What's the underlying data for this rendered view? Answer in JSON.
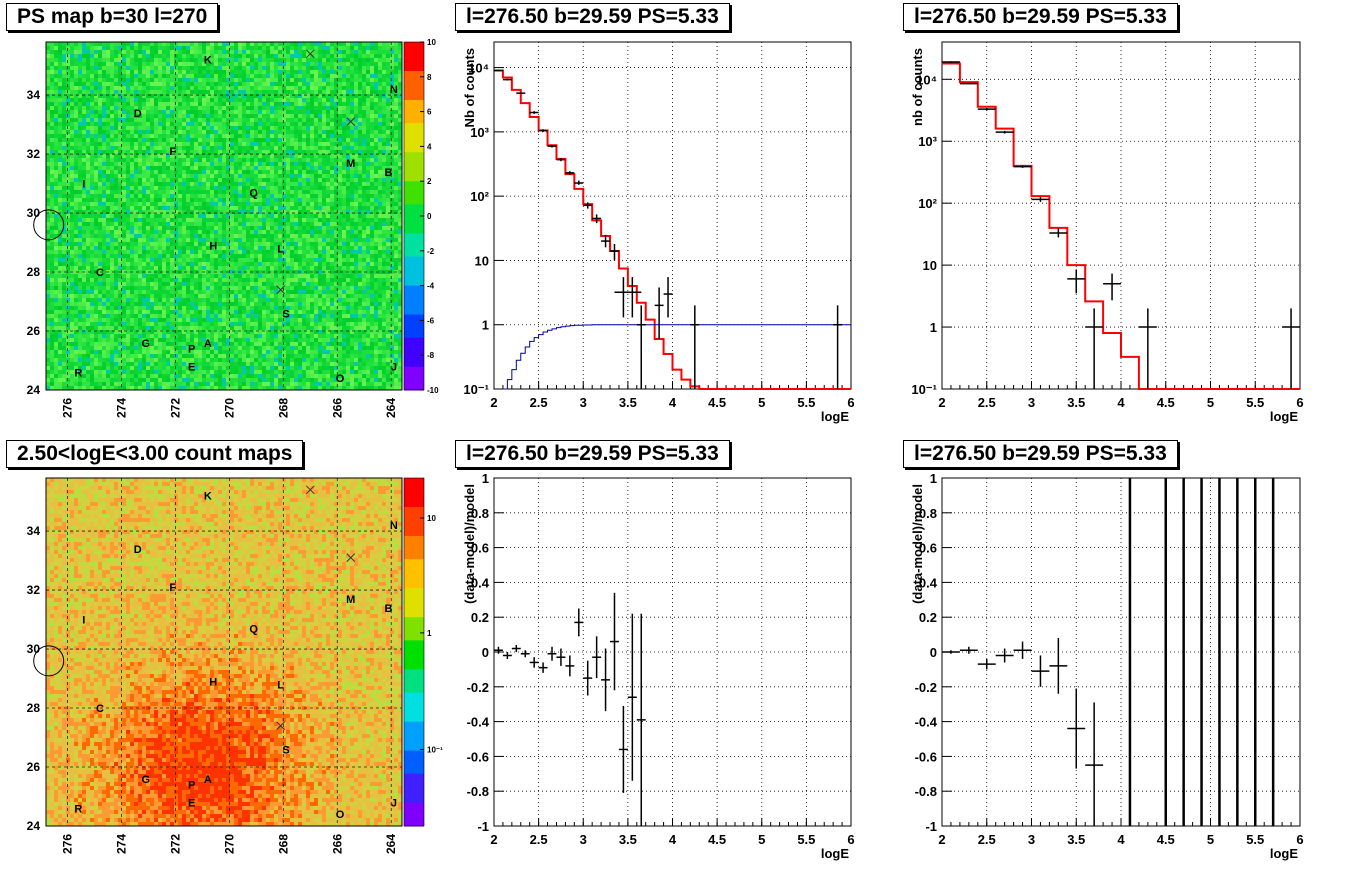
{
  "titles": {
    "map_top": "PS map b=30 l=270",
    "map_bottom": "2.50<logE<3.00 count maps",
    "spec_left": "l=276.50 b=29.59 PS=5.33",
    "spec_right": "l=276.50 b=29.59 PS=5.33",
    "res_left": "l=276.50 b=29.59 PS=5.33",
    "res_right": "l=276.50 b=29.59 PS=5.33"
  },
  "chart_data": [
    {
      "id": "ps-map",
      "type": "heatmap",
      "title": "PS map b=30 l=270",
      "xlim": [
        276.8,
        263.6
      ],
      "ylim": [
        24,
        35.8
      ],
      "xticks": [
        276,
        274,
        272,
        270,
        268,
        266,
        264
      ],
      "yticks": [
        24,
        26,
        28,
        30,
        32,
        34
      ],
      "colorbar": {
        "scale": "linear",
        "range": [
          -10,
          10
        ],
        "ticks": [
          "10",
          "8",
          "6",
          "4",
          "2",
          "0",
          "-2",
          "-4",
          "-6",
          "-8",
          "-10"
        ]
      },
      "grid": true,
      "labels": [
        {
          "text": "K",
          "l": 270.8,
          "b": 35.2
        },
        {
          "text": "N",
          "l": 263.9,
          "b": 34.2
        },
        {
          "text": "D",
          "l": 273.4,
          "b": 33.4
        },
        {
          "text": "F",
          "l": 272.1,
          "b": 32.1
        },
        {
          "text": "M",
          "l": 265.5,
          "b": 31.7
        },
        {
          "text": "B",
          "l": 264.1,
          "b": 31.4
        },
        {
          "text": "I",
          "l": 275.4,
          "b": 31.0
        },
        {
          "text": "Q",
          "l": 269.1,
          "b": 30.7
        },
        {
          "text": "H",
          "l": 270.6,
          "b": 28.9
        },
        {
          "text": "L",
          "l": 268.1,
          "b": 28.8
        },
        {
          "text": "C",
          "l": 274.8,
          "b": 28.0
        },
        {
          "text": "S",
          "l": 267.9,
          "b": 26.6
        },
        {
          "text": "G",
          "l": 273.1,
          "b": 25.6
        },
        {
          "text": "P",
          "l": 271.4,
          "b": 25.4
        },
        {
          "text": "A",
          "l": 270.8,
          "b": 25.6
        },
        {
          "text": "E",
          "l": 271.4,
          "b": 24.8
        },
        {
          "text": "R",
          "l": 275.6,
          "b": 24.6
        },
        {
          "text": "O",
          "l": 265.9,
          "b": 24.4
        },
        {
          "text": "J",
          "l": 263.9,
          "b": 24.8
        }
      ],
      "crosses": [
        {
          "l": 267.0,
          "b": 35.4
        },
        {
          "l": 265.5,
          "b": 33.1
        },
        {
          "l": 268.1,
          "b": 27.4
        }
      ],
      "circle": {
        "l": 276.7,
        "b": 29.6
      }
    },
    {
      "id": "count-map",
      "type": "heatmap",
      "title": "2.50<logE<3.00 count maps",
      "xlim": [
        276.8,
        263.6
      ],
      "ylim": [
        24,
        35.8
      ],
      "xticks": [
        276,
        274,
        272,
        270,
        268,
        266,
        264
      ],
      "yticks": [
        24,
        26,
        28,
        30,
        32,
        34
      ],
      "colorbar": {
        "scale": "log",
        "ticks": [
          "10",
          "1",
          "10⁻¹"
        ]
      },
      "grid": true,
      "same_labels_as": "ps-map"
    },
    {
      "id": "spec-left",
      "type": "line",
      "title": "l=276.50 b=29.59 PS=5.33",
      "xlabel": "logE",
      "ylabel": "Nb of counts",
      "xlim": [
        2,
        6
      ],
      "ylim": [
        0.1,
        25000
      ],
      "yscale": "log",
      "xticks": [
        "2",
        "2.5",
        "3",
        "3.5",
        "4",
        "4.5",
        "5",
        "5.5",
        "6"
      ],
      "yticks": [
        {
          "v": 0.1,
          "t": "10⁻¹"
        },
        {
          "v": 1,
          "t": "1"
        },
        {
          "v": 10,
          "t": "10"
        },
        {
          "v": 100,
          "t": "10²"
        },
        {
          "v": 1000,
          "t": "10³"
        },
        {
          "v": 10000,
          "t": "10⁴"
        }
      ],
      "grid": true,
      "series": [
        {
          "role": "model",
          "color": "#ff0000",
          "bins": [
            2,
            2.1,
            2.2,
            2.3,
            2.4,
            2.5,
            2.6,
            2.7,
            2.8,
            2.9,
            3.0,
            3.1,
            3.2,
            3.3,
            3.4,
            3.5,
            3.6,
            3.7,
            3.8,
            3.9,
            4.0,
            4.1,
            4.2,
            4.3,
            6.0
          ],
          "values": [
            9000,
            7000,
            4500,
            2800,
            1700,
            1050,
            620,
            380,
            220,
            130,
            75,
            42,
            24,
            14,
            7.5,
            4,
            2.2,
            1.2,
            0.6,
            0.35,
            0.2,
            0.14,
            0.11,
            0.1
          ]
        },
        {
          "role": "acceptance",
          "color": "#0000aa",
          "bins": [
            2.1,
            2.15,
            2.2,
            2.25,
            2.3,
            2.35,
            2.4,
            2.45,
            2.5,
            2.55,
            2.6,
            2.65,
            2.7,
            2.75,
            2.8,
            2.85,
            2.9,
            3.0,
            3.1,
            3.2,
            6.0
          ],
          "values": [
            0.1,
            0.14,
            0.2,
            0.28,
            0.36,
            0.45,
            0.55,
            0.63,
            0.7,
            0.77,
            0.82,
            0.86,
            0.9,
            0.93,
            0.95,
            0.97,
            0.98,
            0.99,
            1,
            1
          ]
        },
        {
          "role": "data",
          "color": "#000000",
          "points": [
            {
              "x": 2.05,
              "y": 9000,
              "xe": 0.05,
              "lo": 8800,
              "hi": 9200
            },
            {
              "x": 2.15,
              "y": 6500,
              "xe": 0.05,
              "lo": 6300,
              "hi": 6700
            },
            {
              "x": 2.3,
              "y": 4000,
              "xe": 0.05,
              "lo": 3900,
              "hi": 4100
            },
            {
              "x": 2.45,
              "y": 2000,
              "xe": 0.05,
              "lo": 1900,
              "hi": 2100
            },
            {
              "x": 2.55,
              "y": 1050,
              "xe": 0.05,
              "lo": 1000,
              "hi": 1100
            },
            {
              "x": 2.65,
              "y": 600,
              "xe": 0.05,
              "lo": 570,
              "hi": 630
            },
            {
              "x": 2.75,
              "y": 370,
              "xe": 0.05,
              "lo": 350,
              "hi": 390
            },
            {
              "x": 2.85,
              "y": 230,
              "xe": 0.05,
              "lo": 215,
              "hi": 245
            },
            {
              "x": 2.95,
              "y": 160,
              "xe": 0.05,
              "lo": 150,
              "hi": 175
            },
            {
              "x": 3.05,
              "y": 72,
              "xe": 0.05,
              "lo": 64,
              "hi": 80
            },
            {
              "x": 3.15,
              "y": 45,
              "xe": 0.05,
              "lo": 38,
              "hi": 52
            },
            {
              "x": 3.25,
              "y": 20,
              "xe": 0.05,
              "lo": 16,
              "hi": 25
            },
            {
              "x": 3.35,
              "y": 14,
              "xe": 0.05,
              "lo": 10,
              "hi": 18
            },
            {
              "x": 3.45,
              "y": 3.2,
              "xe": 0.1,
              "lo": 1.3,
              "hi": 5.5
            },
            {
              "x": 3.55,
              "y": 3.2,
              "xe": 0.1,
              "lo": 1.3,
              "hi": 5.5
            },
            {
              "x": 3.65,
              "y": 1,
              "xe": 0.05,
              "lo": 0.1,
              "hi": 2
            },
            {
              "x": 3.85,
              "y": 2,
              "xe": 0.05,
              "lo": 0.6,
              "hi": 3.8
            },
            {
              "x": 3.95,
              "y": 3,
              "xe": 0.05,
              "lo": 1.3,
              "hi": 5.5
            },
            {
              "x": 4.25,
              "y": 1,
              "xe": 0.05,
              "lo": 0.1,
              "hi": 2
            },
            {
              "x": 5.85,
              "y": 1,
              "xe": 0.05,
              "lo": 0.1,
              "hi": 2
            }
          ]
        }
      ]
    },
    {
      "id": "spec-right",
      "type": "line",
      "title": "l=276.50 b=29.59 PS=5.33",
      "xlabel": "logE",
      "ylabel": "nb of counts",
      "xlim": [
        2,
        6
      ],
      "ylim": [
        0.1,
        40000
      ],
      "yscale": "log",
      "xticks": [
        "2",
        "2.5",
        "3",
        "3.5",
        "4",
        "4.5",
        "5",
        "5.5",
        "6"
      ],
      "yticks": [
        {
          "v": 0.1,
          "t": "10⁻¹"
        },
        {
          "v": 1,
          "t": "1"
        },
        {
          "v": 10,
          "t": "10"
        },
        {
          "v": 100,
          "t": "10²"
        },
        {
          "v": 1000,
          "t": "10³"
        },
        {
          "v": 10000,
          "t": "10⁴"
        }
      ],
      "grid": true,
      "series": [
        {
          "role": "model",
          "color": "#ff0000",
          "bins": [
            2,
            2.2,
            2.4,
            2.6,
            2.8,
            3.0,
            3.2,
            3.4,
            3.6,
            3.8,
            4.0,
            4.2,
            6.0
          ],
          "values": [
            18000,
            9000,
            3600,
            1600,
            400,
            130,
            40,
            10,
            2.6,
            0.8,
            0.33,
            0.1
          ]
        },
        {
          "role": "data",
          "color": "#000000",
          "points": [
            {
              "x": 2.1,
              "y": 19000,
              "xe": 0.1,
              "lo": 18500,
              "hi": 19500
            },
            {
              "x": 2.3,
              "y": 8500,
              "xe": 0.1,
              "lo": 8300,
              "hi": 8700
            },
            {
              "x": 2.5,
              "y": 3300,
              "xe": 0.1,
              "lo": 3150,
              "hi": 3450
            },
            {
              "x": 2.7,
              "y": 1400,
              "xe": 0.1,
              "lo": 1330,
              "hi": 1470
            },
            {
              "x": 2.9,
              "y": 390,
              "xe": 0.1,
              "lo": 370,
              "hi": 410
            },
            {
              "x": 3.1,
              "y": 115,
              "xe": 0.1,
              "lo": 105,
              "hi": 125
            },
            {
              "x": 3.3,
              "y": 33,
              "xe": 0.1,
              "lo": 28,
              "hi": 39
            },
            {
              "x": 3.5,
              "y": 6,
              "xe": 0.1,
              "lo": 3.5,
              "hi": 8.5
            },
            {
              "x": 3.7,
              "y": 1,
              "xe": 0.1,
              "lo": 0.1,
              "hi": 2
            },
            {
              "x": 3.9,
              "y": 5,
              "xe": 0.1,
              "lo": 2.7,
              "hi": 7.3
            },
            {
              "x": 4.3,
              "y": 1,
              "xe": 0.1,
              "lo": 0.1,
              "hi": 2
            },
            {
              "x": 5.9,
              "y": 1,
              "xe": 0.1,
              "lo": 0.1,
              "hi": 2
            }
          ]
        }
      ]
    },
    {
      "id": "res-left",
      "type": "scatter",
      "title": "l=276.50 b=29.59 PS=5.33",
      "xlabel": "logE",
      "ylabel": "(data-model)/model",
      "xlim": [
        2,
        6
      ],
      "ylim": [
        -1,
        1
      ],
      "xticks": [
        "2",
        "2.5",
        "3",
        "3.5",
        "4",
        "4.5",
        "5",
        "5.5",
        "6"
      ],
      "yticks": [
        -1,
        -0.8,
        -0.6,
        -0.4,
        -0.2,
        0,
        0.2,
        0.4,
        0.6,
        0.8,
        1
      ],
      "grid": true,
      "points": [
        {
          "x": 2.05,
          "y": 0.01,
          "xe": 0.05,
          "e": 0.02
        },
        {
          "x": 2.15,
          "y": -0.02,
          "xe": 0.05,
          "e": 0.02
        },
        {
          "x": 2.25,
          "y": 0.02,
          "xe": 0.05,
          "e": 0.02
        },
        {
          "x": 2.35,
          "y": -0.01,
          "xe": 0.05,
          "e": 0.02
        },
        {
          "x": 2.45,
          "y": -0.06,
          "xe": 0.05,
          "e": 0.03
        },
        {
          "x": 2.55,
          "y": -0.09,
          "xe": 0.05,
          "e": 0.03
        },
        {
          "x": 2.65,
          "y": -0.01,
          "xe": 0.05,
          "e": 0.04
        },
        {
          "x": 2.75,
          "y": -0.03,
          "xe": 0.05,
          "e": 0.05
        },
        {
          "x": 2.85,
          "y": -0.08,
          "xe": 0.05,
          "e": 0.06
        },
        {
          "x": 2.95,
          "y": 0.17,
          "xe": 0.05,
          "e": 0.08
        },
        {
          "x": 3.05,
          "y": -0.15,
          "xe": 0.05,
          "e": 0.1
        },
        {
          "x": 3.15,
          "y": -0.03,
          "xe": 0.05,
          "e": 0.12
        },
        {
          "x": 3.25,
          "y": -0.16,
          "xe": 0.05,
          "e": 0.18
        },
        {
          "x": 3.35,
          "y": 0.06,
          "xe": 0.05,
          "e": 0.28
        },
        {
          "x": 3.45,
          "y": -0.56,
          "xe": 0.05,
          "e": 0.25
        },
        {
          "x": 3.55,
          "y": -0.26,
          "xe": 0.05,
          "e": 0.48
        },
        {
          "x": 3.65,
          "y": -0.39,
          "xe": 0.05,
          "e": 0.61
        }
      ]
    },
    {
      "id": "res-right",
      "type": "scatter",
      "title": "l=276.50 b=29.59 PS=5.33",
      "xlabel": "logE",
      "ylabel": "(data-model)/model",
      "xlim": [
        2,
        6
      ],
      "ylim": [
        -1,
        1
      ],
      "xticks": [
        "2",
        "2.5",
        "3",
        "3.5",
        "4",
        "4.5",
        "5",
        "5.5",
        "6"
      ],
      "yticks": [
        -1,
        -0.8,
        -0.6,
        -0.4,
        -0.2,
        0,
        0.2,
        0.4,
        0.6,
        0.8,
        1
      ],
      "grid": true,
      "points": [
        {
          "x": 2.1,
          "y": 0.0,
          "xe": 0.1,
          "e": 0.01
        },
        {
          "x": 2.3,
          "y": 0.01,
          "xe": 0.1,
          "e": 0.02
        },
        {
          "x": 2.5,
          "y": -0.07,
          "xe": 0.1,
          "e": 0.03
        },
        {
          "x": 2.7,
          "y": -0.02,
          "xe": 0.1,
          "e": 0.04
        },
        {
          "x": 2.9,
          "y": 0.01,
          "xe": 0.1,
          "e": 0.05
        },
        {
          "x": 3.1,
          "y": -0.11,
          "xe": 0.1,
          "e": 0.09
        },
        {
          "x": 3.3,
          "y": -0.08,
          "xe": 0.1,
          "e": 0.16
        },
        {
          "x": 3.5,
          "y": -0.44,
          "xe": 0.1,
          "e": 0.23
        },
        {
          "x": 3.7,
          "y": -0.65,
          "xe": 0.1,
          "e": 0.36
        }
      ],
      "full_range_bars_x": [
        4.1,
        4.5,
        4.7,
        4.9,
        5.1,
        5.3,
        5.5,
        5.7
      ]
    }
  ]
}
